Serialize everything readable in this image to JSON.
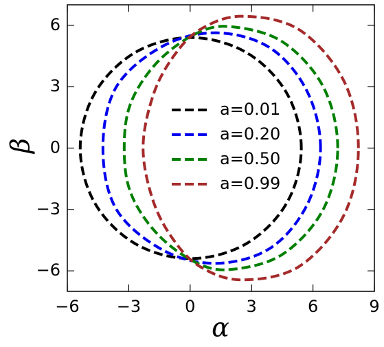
{
  "chart_data": {
    "type": "line",
    "x_label": "α",
    "y_label": "β",
    "xlim": [
      -6,
      9
    ],
    "ylim": [
      -7,
      7
    ],
    "xticks": [
      {
        "value": -6,
        "label": "−6"
      },
      {
        "value": -3,
        "label": "−3"
      },
      0,
      3,
      6,
      9
    ],
    "yticks": [
      {
        "value": -6,
        "label": "−6"
      },
      {
        "value": -3,
        "label": "−3"
      },
      0,
      3,
      6
    ],
    "legend": "center",
    "series": [
      {
        "name": "a=0.01",
        "color": "#000000",
        "x": [
          5.43,
          4.71,
          2.73,
          0.03,
          -2.67,
          -4.65,
          -5.37,
          -4.65,
          -2.67,
          0.03,
          2.73,
          4.71
        ],
        "y": [
          0,
          2.7,
          4.68,
          5.4,
          4.68,
          2.7,
          0,
          -2.7,
          -4.68,
          -5.4,
          -4.68,
          -2.7
        ]
      },
      {
        "name": "a=0.20",
        "color": "#0000ee",
        "x": [
          6.37,
          5.7,
          3.9,
          1.3,
          -1.3,
          -3.6,
          -4.26,
          -3.6,
          -1.3,
          1.3,
          3.9,
          5.7
        ],
        "y": [
          0,
          2.8,
          4.9,
          5.63,
          5.0,
          3.0,
          0,
          -3.0,
          -5.0,
          -5.63,
          -4.9,
          -2.8
        ]
      },
      {
        "name": "a=0.50",
        "color": "#007f00",
        "x": [
          7.21,
          6.5,
          4.5,
          2.0,
          0.3,
          -1.6,
          -2.9,
          -3.22,
          -2.9,
          -1.6,
          0.3,
          2.0,
          4.5,
          6.5
        ],
        "y": [
          0,
          3.0,
          5.2,
          5.93,
          5.6,
          4.2,
          2.2,
          0,
          -2.2,
          -4.2,
          -5.6,
          -5.93,
          -5.2,
          -3.0
        ]
      },
      {
        "name": "a=0.99",
        "color": "#a52a2a",
        "x": [
          8.22,
          7.5,
          5.3,
          2.5,
          0.5,
          -0.8,
          -1.8,
          -2.3,
          -1.8,
          -0.8,
          0.5,
          2.5,
          5.3,
          7.5
        ],
        "y": [
          0,
          3.3,
          5.8,
          6.44,
          5.8,
          4.5,
          2.6,
          0,
          -2.6,
          -4.5,
          -5.8,
          -6.44,
          -5.8,
          -3.3
        ]
      }
    ]
  }
}
